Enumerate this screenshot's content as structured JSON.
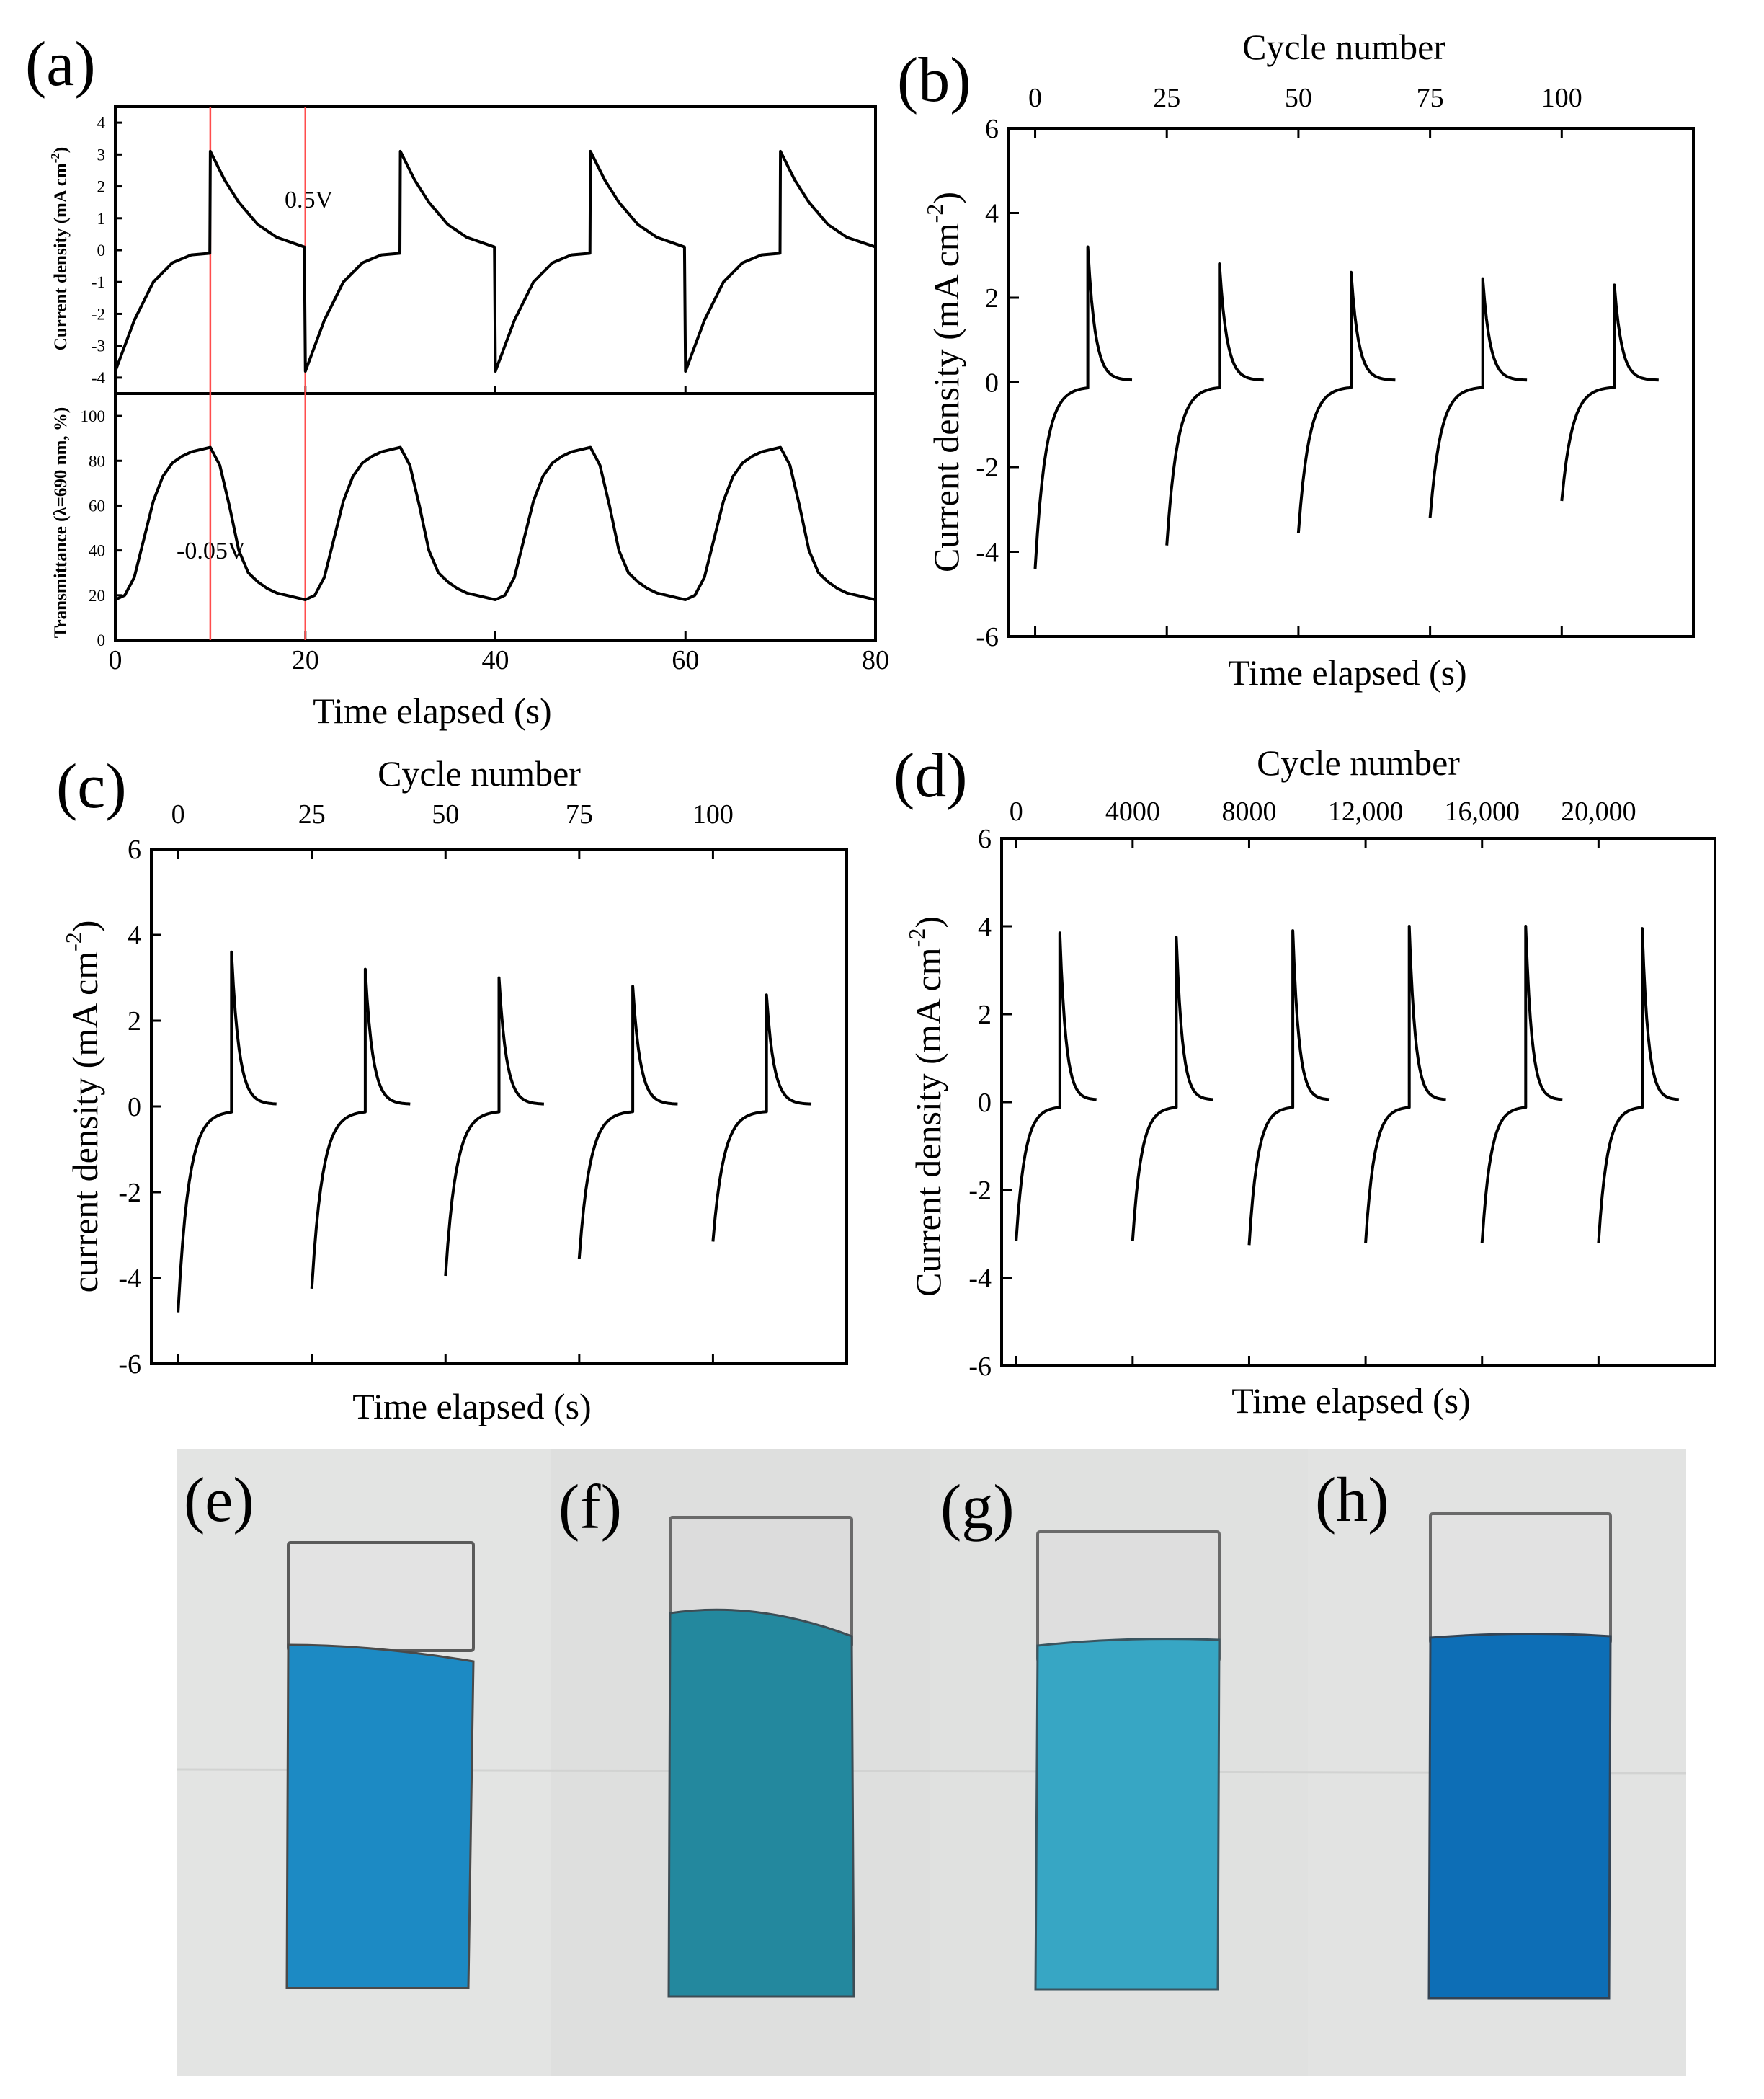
{
  "figure": {
    "panel_labels": {
      "a": "(a)",
      "b": "(b)",
      "c": "(c)",
      "d": "(d)",
      "e": "(e)",
      "f": "(f)",
      "g": "(g)",
      "h": "(h)"
    },
    "colors": {
      "curve": "#000000",
      "marker_line": "#ff4d4d",
      "photo_background": "#e4e5e4",
      "cuvette_empty_e": "#e3e3e3",
      "cuvette_fill_e": "#1c8ac4",
      "cuvette_empty_f": "#dcdcdc",
      "cuvette_fill_f": "#23889e",
      "cuvette_empty_g": "#dedede",
      "cuvette_fill_g": "#37a6c4",
      "cuvette_empty_h": "#e2e2e2",
      "cuvette_fill_h": "#0d6eb6"
    }
  },
  "chart_data": [
    {
      "id": "a-top",
      "type": "line",
      "ylabel_main": "Current density (mA cm",
      "ylabel_sup": "-2",
      "ylabel_end": ")",
      "xlim": [
        0,
        80
      ],
      "ylim": [
        -4.5,
        4.5
      ],
      "yticks": [
        "4",
        "3",
        "2",
        "1",
        "0",
        "-1",
        "-2",
        "-3",
        "-4"
      ],
      "ytick_values": [
        4,
        3,
        2,
        1,
        0,
        -1,
        -2,
        -3,
        -4
      ],
      "annotation": "0.5V",
      "markers_x": [
        10,
        20
      ],
      "series": [
        {
          "x": [
            0,
            2,
            4,
            6,
            8,
            9.95,
            10,
            11.5,
            13,
            15,
            17,
            19.9,
            20,
            22,
            24,
            26,
            28,
            29.95,
            30,
            31.5,
            33,
            35,
            37,
            39.9,
            40,
            42,
            44,
            46,
            48,
            49.95,
            50,
            51.5,
            53,
            55,
            57,
            59.9,
            60,
            62,
            64,
            66,
            68,
            69.95,
            70,
            71.5,
            73,
            75,
            77,
            80
          ],
          "y": [
            -3.8,
            -2.2,
            -1.0,
            -0.4,
            -0.15,
            -0.1,
            3.1,
            2.2,
            1.5,
            0.8,
            0.4,
            0.1,
            -3.8,
            -2.2,
            -1.0,
            -0.4,
            -0.15,
            -0.1,
            3.1,
            2.2,
            1.5,
            0.8,
            0.4,
            0.1,
            -3.8,
            -2.2,
            -1.0,
            -0.4,
            -0.15,
            -0.1,
            3.1,
            2.2,
            1.5,
            0.8,
            0.4,
            0.1,
            -3.8,
            -2.2,
            -1.0,
            -0.4,
            -0.15,
            -0.1,
            3.1,
            2.2,
            1.5,
            0.8,
            0.4,
            0.1
          ]
        }
      ]
    },
    {
      "id": "a-bottom",
      "type": "line",
      "ylabel_main": "Transmittance (λ=690 nm, %)",
      "xlabel": "Time elapsed (s)",
      "xlim": [
        0,
        80
      ],
      "ylim": [
        0,
        110
      ],
      "xticks": [
        "0",
        "20",
        "40",
        "60",
        "80"
      ],
      "xtick_values": [
        0,
        20,
        40,
        60,
        80
      ],
      "yticks": [
        "100",
        "80",
        "60",
        "40",
        "20",
        "0"
      ],
      "ytick_values": [
        100,
        80,
        60,
        40,
        20,
        0
      ],
      "annotation": "-0.05V",
      "series": [
        {
          "x": [
            0,
            1,
            2,
            3,
            4,
            5,
            6,
            7,
            8,
            9,
            10,
            11,
            12,
            13,
            14,
            15,
            16,
            17,
            18,
            19,
            20,
            21,
            22,
            23,
            24,
            25,
            26,
            27,
            28,
            29,
            30,
            31,
            32,
            33,
            34,
            35,
            36,
            37,
            38,
            39,
            40,
            41,
            42,
            43,
            44,
            45,
            46,
            47,
            48,
            49,
            50,
            51,
            52,
            53,
            54,
            55,
            56,
            57,
            58,
            59,
            60,
            61,
            62,
            63,
            64,
            65,
            66,
            67,
            68,
            69,
            70,
            71,
            72,
            73,
            74,
            75,
            76,
            77,
            78,
            79,
            80
          ],
          "y": [
            18,
            20,
            28,
            45,
            62,
            73,
            79,
            82,
            84,
            85,
            86,
            78,
            60,
            40,
            30,
            26,
            23,
            21,
            20,
            19,
            18,
            20,
            28,
            45,
            62,
            73,
            79,
            82,
            84,
            85,
            86,
            78,
            60,
            40,
            30,
            26,
            23,
            21,
            20,
            19,
            18,
            20,
            28,
            45,
            62,
            73,
            79,
            82,
            84,
            85,
            86,
            78,
            60,
            40,
            30,
            26,
            23,
            21,
            20,
            19,
            18,
            20,
            28,
            45,
            62,
            73,
            79,
            82,
            84,
            85,
            86,
            78,
            60,
            40,
            30,
            26,
            23,
            21,
            20,
            19,
            18
          ]
        }
      ]
    },
    {
      "id": "b",
      "type": "line",
      "title": "Cycle number",
      "ylabel_main": "Current density (mA cm",
      "ylabel_sup": "-2",
      "ylabel_end": ")",
      "xlabel": "Time elapsed (s)",
      "xlim": [
        -5,
        125
      ],
      "ylim": [
        -6,
        6
      ],
      "xticks": [
        "0",
        "25",
        "50",
        "75",
        "100"
      ],
      "xtick_values": [
        0,
        25,
        50,
        75,
        100
      ],
      "yticks": [
        "6",
        "4",
        "2",
        "0",
        "-2",
        "-4",
        "-6"
      ],
      "ytick_values": [
        6,
        4,
        2,
        0,
        -2,
        -4,
        -6
      ],
      "cycles": [
        {
          "start": 0,
          "min": -4.4,
          "peak": 3.2
        },
        {
          "start": 25,
          "min": -3.85,
          "peak": 2.8
        },
        {
          "start": 50,
          "min": -3.55,
          "peak": 2.6
        },
        {
          "start": 75,
          "min": -3.2,
          "peak": 2.45
        },
        {
          "start": 100,
          "min": -2.8,
          "peak": 2.3
        }
      ]
    },
    {
      "id": "c",
      "type": "line",
      "title": "Cycle number",
      "ylabel_main": "current density (mA cm",
      "ylabel_sup": "-2",
      "ylabel_end": ")",
      "xlabel": "Time elapsed (s)",
      "xlim": [
        -5,
        125
      ],
      "ylim": [
        -6,
        6
      ],
      "xticks": [
        "0",
        "25",
        "50",
        "75",
        "100"
      ],
      "xtick_values": [
        0,
        25,
        50,
        75,
        100
      ],
      "yticks": [
        "6",
        "4",
        "2",
        "0",
        "-2",
        "-4",
        "-6"
      ],
      "ytick_values": [
        6,
        4,
        2,
        0,
        -2,
        -4,
        -6
      ],
      "cycles": [
        {
          "start": 0,
          "min": -4.8,
          "peak": 3.6
        },
        {
          "start": 25,
          "min": -4.25,
          "peak": 3.2
        },
        {
          "start": 50,
          "min": -3.95,
          "peak": 3.0
        },
        {
          "start": 75,
          "min": -3.55,
          "peak": 2.8
        },
        {
          "start": 100,
          "min": -3.15,
          "peak": 2.6
        }
      ]
    },
    {
      "id": "d",
      "type": "line",
      "title": "Cycle number",
      "ylabel_main": "Current density (mA cm",
      "ylabel_sup": "-2",
      "ylabel_end": ")",
      "xlabel": "Time elapsed (s)",
      "xlim": [
        -500,
        24000
      ],
      "ylim": [
        -6,
        6
      ],
      "xticks": [
        "0",
        "4000",
        "8000",
        "12,000",
        "16,000",
        "20,000"
      ],
      "xtick_values": [
        0,
        4000,
        8000,
        12000,
        16000,
        20000
      ],
      "yticks": [
        "6",
        "4",
        "2",
        "0",
        "-2",
        "-4",
        "-6"
      ],
      "ytick_values": [
        6,
        4,
        2,
        0,
        -2,
        -4,
        -6
      ],
      "cycles": [
        {
          "start": 0,
          "min": -3.15,
          "peak": 3.85
        },
        {
          "start": 4000,
          "min": -3.15,
          "peak": 3.75
        },
        {
          "start": 8000,
          "min": -3.25,
          "peak": 3.9
        },
        {
          "start": 12000,
          "min": -3.2,
          "peak": 4.0
        },
        {
          "start": 16000,
          "min": -3.2,
          "peak": 4.0
        },
        {
          "start": 20000,
          "min": -3.2,
          "peak": 3.95
        }
      ]
    }
  ]
}
